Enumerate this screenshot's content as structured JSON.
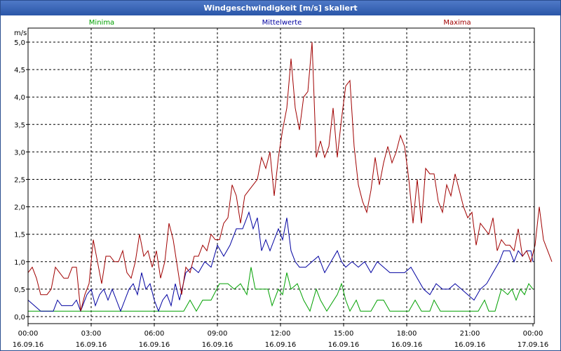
{
  "window": {
    "title": "Windgeschwindigkeit [m/s] skaliert"
  },
  "chart_data": {
    "type": "line",
    "title": "Windgeschwindigkeit [m/s] skaliert",
    "ylabel": "m/s",
    "ylim": [
      -0.1,
      5.2
    ],
    "xlim": [
      0,
      24
    ],
    "grid": true,
    "y_ticks": [
      {
        "value": 0.0,
        "label": "0,0"
      },
      {
        "value": 0.5,
        "label": "0,5"
      },
      {
        "value": 1.0,
        "label": "1,0"
      },
      {
        "value": 1.5,
        "label": "1,5"
      },
      {
        "value": 2.0,
        "label": "2,0"
      },
      {
        "value": 2.5,
        "label": "2,5"
      },
      {
        "value": 3.0,
        "label": "3,0"
      },
      {
        "value": 3.5,
        "label": "3,5"
      },
      {
        "value": 4.0,
        "label": "4,0"
      },
      {
        "value": 4.5,
        "label": "4,5"
      },
      {
        "value": 5.0,
        "label": "5,0"
      }
    ],
    "x_ticks": [
      {
        "value": 0,
        "time": "00:00",
        "date": "16.09.16"
      },
      {
        "value": 3,
        "time": "03:00",
        "date": "16.09.16"
      },
      {
        "value": 6,
        "time": "06:00",
        "date": "16.09.16"
      },
      {
        "value": 9,
        "time": "09:00",
        "date": "16.09.16"
      },
      {
        "value": 12,
        "time": "12:00",
        "date": "16.09.16"
      },
      {
        "value": 15,
        "time": "15:00",
        "date": "16.09.16"
      },
      {
        "value": 18,
        "time": "18:00",
        "date": "16.09.16"
      },
      {
        "value": 21,
        "time": "21:00",
        "date": "16.09.16"
      },
      {
        "value": 24,
        "time": "00:00",
        "date": "17.09.16"
      }
    ],
    "legend": {
      "placement": "top"
    },
    "series": [
      {
        "name": "Minima",
        "color": "#00a000",
        "points": [
          [
            0,
            0.1
          ],
          [
            3,
            0.1
          ],
          [
            7.4,
            0.1
          ],
          [
            7.7,
            0.3
          ],
          [
            8.0,
            0.1
          ],
          [
            8.3,
            0.3
          ],
          [
            8.7,
            0.3
          ],
          [
            9.1,
            0.6
          ],
          [
            9.5,
            0.6
          ],
          [
            9.8,
            0.5
          ],
          [
            10.1,
            0.6
          ],
          [
            10.4,
            0.4
          ],
          [
            10.6,
            0.9
          ],
          [
            10.8,
            0.5
          ],
          [
            11.4,
            0.5
          ],
          [
            11.6,
            0.2
          ],
          [
            11.9,
            0.5
          ],
          [
            12.1,
            0.4
          ],
          [
            12.3,
            0.8
          ],
          [
            12.5,
            0.5
          ],
          [
            12.8,
            0.6
          ],
          [
            13.1,
            0.3
          ],
          [
            13.4,
            0.1
          ],
          [
            13.7,
            0.5
          ],
          [
            13.9,
            0.3
          ],
          [
            14.2,
            0.1
          ],
          [
            14.7,
            0.4
          ],
          [
            14.9,
            0.6
          ],
          [
            15.1,
            0.3
          ],
          [
            15.3,
            0.1
          ],
          [
            15.6,
            0.3
          ],
          [
            15.8,
            0.1
          ],
          [
            16.3,
            0.1
          ],
          [
            16.6,
            0.3
          ],
          [
            16.9,
            0.3
          ],
          [
            17.2,
            0.1
          ],
          [
            18.1,
            0.1
          ],
          [
            18.4,
            0.3
          ],
          [
            18.7,
            0.1
          ],
          [
            19.1,
            0.1
          ],
          [
            19.3,
            0.3
          ],
          [
            19.6,
            0.1
          ],
          [
            21.4,
            0.1
          ],
          [
            21.7,
            0.3
          ],
          [
            21.9,
            0.1
          ],
          [
            22.2,
            0.1
          ],
          [
            22.5,
            0.5
          ],
          [
            22.8,
            0.4
          ],
          [
            23.0,
            0.5
          ],
          [
            23.2,
            0.3
          ],
          [
            23.4,
            0.5
          ],
          [
            23.6,
            0.4
          ],
          [
            23.8,
            0.6
          ],
          [
            24,
            0.5
          ]
        ]
      },
      {
        "name": "Mittelwerte",
        "color": "#0000a0",
        "points": [
          [
            0,
            0.3
          ],
          [
            0.3,
            0.2
          ],
          [
            0.6,
            0.1
          ],
          [
            1.2,
            0.1
          ],
          [
            1.4,
            0.3
          ],
          [
            1.6,
            0.2
          ],
          [
            2.1,
            0.2
          ],
          [
            2.3,
            0.3
          ],
          [
            2.5,
            0.1
          ],
          [
            2.8,
            0.4
          ],
          [
            3.0,
            0.5
          ],
          [
            3.2,
            0.2
          ],
          [
            3.4,
            0.4
          ],
          [
            3.6,
            0.5
          ],
          [
            3.8,
            0.3
          ],
          [
            4.0,
            0.5
          ],
          [
            4.2,
            0.3
          ],
          [
            4.4,
            0.1
          ],
          [
            4.6,
            0.3
          ],
          [
            4.8,
            0.5
          ],
          [
            5.0,
            0.6
          ],
          [
            5.2,
            0.4
          ],
          [
            5.4,
            0.8
          ],
          [
            5.6,
            0.5
          ],
          [
            5.8,
            0.6
          ],
          [
            6.0,
            0.3
          ],
          [
            6.2,
            0.1
          ],
          [
            6.4,
            0.3
          ],
          [
            6.6,
            0.4
          ],
          [
            6.8,
            0.2
          ],
          [
            7.0,
            0.6
          ],
          [
            7.2,
            0.3
          ],
          [
            7.5,
            0.8
          ],
          [
            7.8,
            0.9
          ],
          [
            8.1,
            0.8
          ],
          [
            8.4,
            1.0
          ],
          [
            8.7,
            0.9
          ],
          [
            9.0,
            1.3
          ],
          [
            9.3,
            1.1
          ],
          [
            9.6,
            1.3
          ],
          [
            9.9,
            1.6
          ],
          [
            10.2,
            1.6
          ],
          [
            10.5,
            1.9
          ],
          [
            10.7,
            1.6
          ],
          [
            10.9,
            1.8
          ],
          [
            11.1,
            1.2
          ],
          [
            11.3,
            1.4
          ],
          [
            11.5,
            1.2
          ],
          [
            11.7,
            1.4
          ],
          [
            11.9,
            1.6
          ],
          [
            12.1,
            1.4
          ],
          [
            12.3,
            1.8
          ],
          [
            12.5,
            1.2
          ],
          [
            12.7,
            1.0
          ],
          [
            12.9,
            0.9
          ],
          [
            13.2,
            0.9
          ],
          [
            13.5,
            1.0
          ],
          [
            13.8,
            1.1
          ],
          [
            14.1,
            0.8
          ],
          [
            14.4,
            1.0
          ],
          [
            14.7,
            1.2
          ],
          [
            14.9,
            1.0
          ],
          [
            15.1,
            0.9
          ],
          [
            15.4,
            1.0
          ],
          [
            15.7,
            0.9
          ],
          [
            16.0,
            1.0
          ],
          [
            16.3,
            0.8
          ],
          [
            16.6,
            1.0
          ],
          [
            16.9,
            0.9
          ],
          [
            17.2,
            0.8
          ],
          [
            17.6,
            0.8
          ],
          [
            17.9,
            0.8
          ],
          [
            18.2,
            0.9
          ],
          [
            18.5,
            0.7
          ],
          [
            18.8,
            0.5
          ],
          [
            19.1,
            0.4
          ],
          [
            19.4,
            0.6
          ],
          [
            19.7,
            0.5
          ],
          [
            20.0,
            0.5
          ],
          [
            20.3,
            0.6
          ],
          [
            20.6,
            0.5
          ],
          [
            20.9,
            0.4
          ],
          [
            21.2,
            0.3
          ],
          [
            21.5,
            0.5
          ],
          [
            21.8,
            0.6
          ],
          [
            22.1,
            0.8
          ],
          [
            22.4,
            1.0
          ],
          [
            22.6,
            1.2
          ],
          [
            22.9,
            1.2
          ],
          [
            23.1,
            1.0
          ],
          [
            23.3,
            1.2
          ],
          [
            23.5,
            1.1
          ],
          [
            23.7,
            1.2
          ],
          [
            23.9,
            1.2
          ],
          [
            24.0,
            1.0
          ]
        ]
      },
      {
        "name": "Maxima",
        "color": "#a00000",
        "points": [
          [
            0,
            0.8
          ],
          [
            0.2,
            0.9
          ],
          [
            0.4,
            0.7
          ],
          [
            0.6,
            0.4
          ],
          [
            0.9,
            0.4
          ],
          [
            1.1,
            0.5
          ],
          [
            1.3,
            0.9
          ],
          [
            1.5,
            0.8
          ],
          [
            1.7,
            0.7
          ],
          [
            1.9,
            0.7
          ],
          [
            2.1,
            0.9
          ],
          [
            2.3,
            0.9
          ],
          [
            2.5,
            0.1
          ],
          [
            2.7,
            0.4
          ],
          [
            2.9,
            0.6
          ],
          [
            3.1,
            1.4
          ],
          [
            3.3,
            1.0
          ],
          [
            3.5,
            0.6
          ],
          [
            3.7,
            1.1
          ],
          [
            3.9,
            1.1
          ],
          [
            4.1,
            1.0
          ],
          [
            4.3,
            1.0
          ],
          [
            4.5,
            1.2
          ],
          [
            4.7,
            0.8
          ],
          [
            4.9,
            0.7
          ],
          [
            5.1,
            1.0
          ],
          [
            5.3,
            1.5
          ],
          [
            5.5,
            1.1
          ],
          [
            5.7,
            1.2
          ],
          [
            5.9,
            0.9
          ],
          [
            6.1,
            1.2
          ],
          [
            6.3,
            0.7
          ],
          [
            6.5,
            1.0
          ],
          [
            6.7,
            1.7
          ],
          [
            6.9,
            1.4
          ],
          [
            7.1,
            0.9
          ],
          [
            7.3,
            0.4
          ],
          [
            7.5,
            0.9
          ],
          [
            7.7,
            0.8
          ],
          [
            7.9,
            1.1
          ],
          [
            8.1,
            1.1
          ],
          [
            8.3,
            1.3
          ],
          [
            8.5,
            1.2
          ],
          [
            8.7,
            1.5
          ],
          [
            8.9,
            1.4
          ],
          [
            9.1,
            1.4
          ],
          [
            9.3,
            1.7
          ],
          [
            9.5,
            1.8
          ],
          [
            9.7,
            2.4
          ],
          [
            9.9,
            2.2
          ],
          [
            10.1,
            1.7
          ],
          [
            10.3,
            2.2
          ],
          [
            10.5,
            2.3
          ],
          [
            10.7,
            2.4
          ],
          [
            10.9,
            2.5
          ],
          [
            11.1,
            2.9
          ],
          [
            11.3,
            2.7
          ],
          [
            11.5,
            3.0
          ],
          [
            11.7,
            2.2
          ],
          [
            11.9,
            2.9
          ],
          [
            12.1,
            3.4
          ],
          [
            12.3,
            3.8
          ],
          [
            12.5,
            4.7
          ],
          [
            12.7,
            3.8
          ],
          [
            12.9,
            3.4
          ],
          [
            13.1,
            4.0
          ],
          [
            13.3,
            4.1
          ],
          [
            13.5,
            5.0
          ],
          [
            13.7,
            2.9
          ],
          [
            13.9,
            3.2
          ],
          [
            14.1,
            2.9
          ],
          [
            14.3,
            3.1
          ],
          [
            14.5,
            3.8
          ],
          [
            14.7,
            2.9
          ],
          [
            14.9,
            3.6
          ],
          [
            15.1,
            4.2
          ],
          [
            15.3,
            4.3
          ],
          [
            15.5,
            3.1
          ],
          [
            15.7,
            2.4
          ],
          [
            15.9,
            2.1
          ],
          [
            16.1,
            1.9
          ],
          [
            16.3,
            2.3
          ],
          [
            16.5,
            2.9
          ],
          [
            16.7,
            2.4
          ],
          [
            16.9,
            2.8
          ],
          [
            17.1,
            3.1
          ],
          [
            17.3,
            2.8
          ],
          [
            17.5,
            3.0
          ],
          [
            17.7,
            3.3
          ],
          [
            17.9,
            3.1
          ],
          [
            18.1,
            2.5
          ],
          [
            18.3,
            1.7
          ],
          [
            18.5,
            2.5
          ],
          [
            18.7,
            1.7
          ],
          [
            18.9,
            2.7
          ],
          [
            19.1,
            2.6
          ],
          [
            19.3,
            2.6
          ],
          [
            19.5,
            2.1
          ],
          [
            19.7,
            1.9
          ],
          [
            19.9,
            2.4
          ],
          [
            20.1,
            2.2
          ],
          [
            20.3,
            2.6
          ],
          [
            20.5,
            2.3
          ],
          [
            20.7,
            2.0
          ],
          [
            20.9,
            1.8
          ],
          [
            21.1,
            1.9
          ],
          [
            21.3,
            1.3
          ],
          [
            21.5,
            1.7
          ],
          [
            21.7,
            1.6
          ],
          [
            21.9,
            1.5
          ],
          [
            22.1,
            1.8
          ],
          [
            22.3,
            1.2
          ],
          [
            22.5,
            1.4
          ],
          [
            22.7,
            1.3
          ],
          [
            22.9,
            1.3
          ],
          [
            23.1,
            1.2
          ],
          [
            23.3,
            1.6
          ],
          [
            23.5,
            1.1
          ],
          [
            23.7,
            1.2
          ],
          [
            23.9,
            1.0
          ],
          [
            24.1,
            1.3
          ],
          [
            24.3,
            2.0
          ],
          [
            24.5,
            1.4
          ],
          [
            24.7,
            1.2
          ],
          [
            24.9,
            1.0
          ]
        ]
      }
    ]
  }
}
